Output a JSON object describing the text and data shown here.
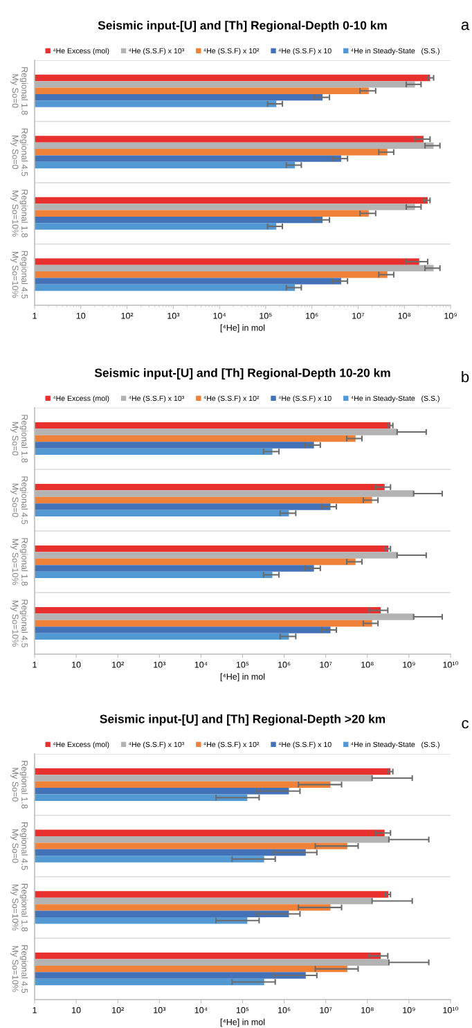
{
  "chart_data": [
    {
      "type": "bar",
      "orientation": "horizontal",
      "title": "Seismic input-[U] and [Th] Regional-Depth 0-10 km",
      "annotations": [
        "a"
      ],
      "xlabel": "[⁴He] in mol",
      "categories": [
        "Regional 1.8\nMy So=0",
        "Regional 4.5\nMy So=0",
        "Regional 1.8\nMy So=10%",
        "Regional 4.5\nMy So=10%"
      ],
      "series": [
        {
          "name": "⁴He Excess (mol)",
          "color": "#e8302e",
          "values": [
            360000000.0,
            260000000.0,
            320000000.0,
            210000000.0
          ],
          "errors": [
            [
              320000000.0,
              430000000.0
            ],
            [
              170000000.0,
              360000000.0
            ],
            [
              270000000.0,
              360000000.0
            ],
            [
              110000000.0,
              320000000.0
            ]
          ]
        },
        {
          "name": "⁴He (S.S.F) x 10³",
          "color": "#b3b3b3",
          "values": [
            170000000.0,
            430000000.0,
            170000000.0,
            430000000.0
          ],
          "errors": [
            [
              110000000.0,
              230000000.0
            ],
            [
              280000000.0,
              590000000.0
            ],
            [
              110000000.0,
              230000000.0
            ],
            [
              280000000.0,
              590000000.0
            ]
          ]
        },
        {
          "name": "⁴He (S.S.F) x 10²",
          "color": "#ef8139",
          "values": [
            17000000.0,
            43000000.0,
            17000000.0,
            43000000.0
          ],
          "errors": [
            [
              11000000.0,
              24000000.0
            ],
            [
              28000000.0,
              59000000.0
            ],
            [
              11000000.0,
              24000000.0
            ],
            [
              28000000.0,
              59000000.0
            ]
          ]
        },
        {
          "name": "⁴He (S.S.F) x 10",
          "color": "#4372b8",
          "values": [
            1700000.0,
            4300000.0,
            1700000.0,
            4300000.0
          ],
          "errors": [
            [
              1100000.0,
              2400000.0
            ],
            [
              2800000.0,
              5900000.0
            ],
            [
              1100000.0,
              2400000.0
            ],
            [
              2800000.0,
              5900000.0
            ]
          ]
        },
        {
          "name": "⁴He in Steady-State   (S.S.)",
          "color": "#5299d3",
          "values": [
            170000.0,
            430000.0,
            170000.0,
            430000.0
          ],
          "errors": [
            [
              110000.0,
              230000.0
            ],
            [
              280000.0,
              590000.0
            ],
            [
              110000.0,
              230000.0
            ],
            [
              280000.0,
              590000.0
            ]
          ]
        }
      ],
      "log": "x",
      "xlim": [
        1,
        1000000000.0
      ],
      "xticks": [
        1,
        10,
        {
          "value": 100,
          "label": "10²"
        },
        {
          "value": 1000,
          "label": "10³"
        },
        {
          "value": 10000.0,
          "label": "10⁴"
        },
        {
          "value": 100000.0,
          "label": "10⁵"
        },
        {
          "value": 1000000.0,
          "label": "10⁶"
        },
        {
          "value": 10000000.0,
          "label": "10⁷"
        },
        {
          "value": 100000000.0,
          "label": "10⁸"
        },
        {
          "value": 1000000000.0,
          "label": "10⁹"
        }
      ],
      "grid": "y",
      "legend": "top"
    },
    {
      "type": "bar",
      "orientation": "horizontal",
      "title": "Seismic input-[U] and [Th] Regional-Depth 10-20 km",
      "annotations": [
        "b"
      ],
      "xlabel": "[⁴He] in mol",
      "categories": [
        "Regional 1.8\nMy So=0",
        "Regional 4.5\nMy So=0",
        "Regional 1.8\nMy So=10%",
        "Regional 4.5\nMy So=10%"
      ],
      "series": [
        {
          "name": "⁴He Excess (mol)",
          "color": "#e8302e",
          "values": [
            360000000.0,
            260000000.0,
            320000000.0,
            210000000.0
          ],
          "errors": [
            [
              320000000.0,
              410000000.0
            ],
            [
              160000000.0,
              360000000.0
            ],
            [
              270000000.0,
              360000000.0
            ],
            [
              110000000.0,
              310000000.0
            ]
          ]
        },
        {
          "name": "⁴He (S.S.F) x 10³",
          "color": "#b3b3b3",
          "values": [
            520000000.0,
            1300000000.0,
            520000000.0,
            1300000000.0
          ],
          "errors": [
            [
              520000000.0,
              2600000000.0
            ],
            [
              1300000000.0,
              6300000000.0
            ],
            [
              520000000.0,
              2600000000.0
            ],
            [
              1300000000.0,
              6300000000.0
            ]
          ]
        },
        {
          "name": "⁴He (S.S.F) x 10²",
          "color": "#ef8139",
          "values": [
            52000000.0,
            130000000.0,
            52000000.0,
            130000000.0
          ],
          "errors": [
            [
              32000000.0,
              74000000.0
            ],
            [
              80000000.0,
              180000000.0
            ],
            [
              32000000.0,
              74000000.0
            ],
            [
              80000000.0,
              180000000.0
            ]
          ]
        },
        {
          "name": "⁴He (S.S.F) x 10",
          "color": "#4372b8",
          "values": [
            5200000.0,
            13000000.0,
            5200000.0,
            13000000.0
          ],
          "errors": [
            [
              3200000.0,
              7400000.0
            ],
            [
              8000000.0,
              18000000.0
            ],
            [
              3200000.0,
              7400000.0
            ],
            [
              8000000.0,
              18000000.0
            ]
          ]
        },
        {
          "name": "⁴He in Steady-State   (S.S.)",
          "color": "#5299d3",
          "values": [
            520000.0,
            1300000.0,
            520000.0,
            1300000.0
          ],
          "errors": [
            [
              320000.0,
              750000.0
            ],
            [
              800000.0,
              1900000.0
            ],
            [
              320000.0,
              750000.0
            ],
            [
              800000.0,
              1900000.0
            ]
          ]
        }
      ],
      "log": "x",
      "xlim": [
        1,
        10000000000.0
      ],
      "xticks": [
        1,
        10,
        {
          "value": 100,
          "label": "10²"
        },
        {
          "value": 1000,
          "label": "10³"
        },
        {
          "value": 10000.0,
          "label": "10⁴"
        },
        {
          "value": 100000.0,
          "label": "10⁵"
        },
        {
          "value": 1000000.0,
          "label": "10⁶"
        },
        {
          "value": 10000000.0,
          "label": "10⁷"
        },
        {
          "value": 100000000.0,
          "label": "10⁸"
        },
        {
          "value": 1000000000.0,
          "label": "10⁹"
        },
        {
          "value": 10000000000.0,
          "label": "10¹⁰"
        }
      ],
      "grid": "y",
      "legend": "top"
    },
    {
      "type": "bar",
      "orientation": "horizontal",
      "title": "Seismic input-[U] and [Th] Regional-Depth >20 km",
      "annotations": [
        "c"
      ],
      "xlabel": "[⁴He] in mol",
      "categories": [
        "Regional 1.8\nMy So=0",
        "Regional 4.5\nMy So=0",
        "Regional 1.8\nMy So=10%",
        "Regional 4.5\nMy So=10%"
      ],
      "series": [
        {
          "name": "⁴He Excess (mol)",
          "color": "#e8302e",
          "values": [
            360000000.0,
            260000000.0,
            320000000.0,
            210000000.0
          ],
          "errors": [
            [
              320000000.0,
              410000000.0
            ],
            [
              160000000.0,
              360000000.0
            ],
            [
              270000000.0,
              360000000.0
            ],
            [
              110000000.0,
              310000000.0
            ]
          ]
        },
        {
          "name": "⁴He (S.S.F) x 10³",
          "color": "#b3b3b3",
          "values": [
            130000000.0,
            330000000.0,
            130000000.0,
            330000000.0
          ],
          "errors": [
            [
              130000000.0,
              1200000000.0
            ],
            [
              330000000.0,
              3000000000.0
            ],
            [
              130000000.0,
              1200000000.0
            ],
            [
              330000000.0,
              3000000000.0
            ]
          ]
        },
        {
          "name": "⁴He (S.S.F) x 10²",
          "color": "#ef8139",
          "values": [
            13000000.0,
            33000000.0,
            13000000.0,
            33000000.0
          ],
          "errors": [
            [
              2200000.0,
              24000000.0
            ],
            [
              5600000.0,
              60000000.0
            ],
            [
              2200000.0,
              24000000.0
            ],
            [
              5600000.0,
              60000000.0
            ]
          ]
        },
        {
          "name": "⁴He (S.S.F) x 10",
          "color": "#4372b8",
          "values": [
            1300000.0,
            3300000.0,
            1300000.0,
            3300000.0
          ],
          "errors": [
            [
              220000.0,
              2400000.0
            ],
            [
              560000.0,
              6100000.0
            ],
            [
              220000.0,
              2400000.0
            ],
            [
              560000.0,
              6100000.0
            ]
          ]
        },
        {
          "name": "⁴He in Steady-State   (S.S.)",
          "color": "#5299d3",
          "values": [
            130000.0,
            330000.0,
            130000.0,
            330000.0
          ],
          "errors": [
            [
              23000.0,
              250000.0
            ],
            [
              56000.0,
              610000.0
            ],
            [
              23000.0,
              250000.0
            ],
            [
              56000.0,
              610000.0
            ]
          ]
        }
      ],
      "log": "x",
      "xlim": [
        1,
        10000000000.0
      ],
      "xticks": [
        1,
        10,
        {
          "value": 100,
          "label": "10²"
        },
        {
          "value": 1000,
          "label": "10³"
        },
        {
          "value": 10000.0,
          "label": "10⁴"
        },
        {
          "value": 100000.0,
          "label": "10⁵"
        },
        {
          "value": 1000000.0,
          "label": "10⁶"
        },
        {
          "value": 10000000.0,
          "label": "10⁷"
        },
        {
          "value": 100000000.0,
          "label": "10⁸"
        },
        {
          "value": 1000000000.0,
          "label": "10⁹"
        },
        {
          "value": 10000000000.0,
          "label": "10¹⁰"
        }
      ],
      "grid": "y",
      "legend": "top"
    }
  ]
}
